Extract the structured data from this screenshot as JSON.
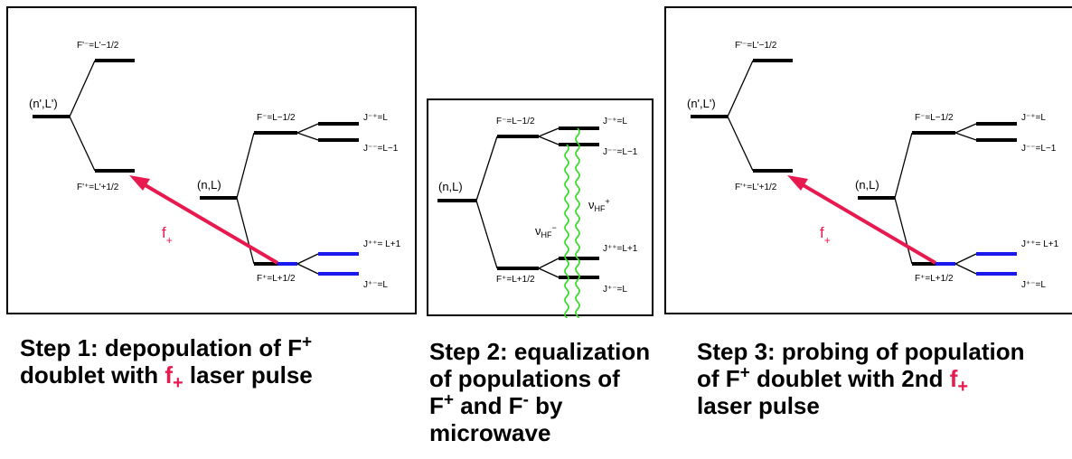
{
  "panel1": {
    "upper_state": "(n',L')",
    "upper_top_level": "F'⁻=L'−1/2",
    "upper_bottom_level": "F'⁺=L'+1/2",
    "lower_state": "(n,L)",
    "f_minus_level": "F⁻=L−1/2",
    "f_plus_level": "F⁺=L+1/2",
    "j_minus_plus": "J⁻⁺=L",
    "j_minus_minus": "J⁻⁻=L−1",
    "j_plus_plus": "J⁺⁺= L+1",
    "j_plus_minus": "J⁺⁻=L",
    "laser_label": "f",
    "laser_sub": "+"
  },
  "panel2": {
    "state": "(n,L)",
    "f_minus_level": "F⁻=L−1/2",
    "f_plus_level": "F⁺=L+1/2",
    "j_minus_plus": "J⁻⁺=L",
    "j_minus_minus": "J⁻⁻=L−1",
    "j_plus_plus": "J⁺⁺=L+1",
    "j_plus_minus": "J⁺⁻=L",
    "nu_minus": "ν",
    "nu_minus_sub": "HF",
    "nu_minus_sup": "−",
    "nu_plus": "ν",
    "nu_plus_sub": "HF",
    "nu_plus_sup": "+"
  },
  "panel3": {
    "upper_state": "(n',L')",
    "upper_top_level": "F'⁻=L'−1/2",
    "upper_bottom_level": "F'⁺=L'+1/2",
    "lower_state": "(n,L)",
    "f_minus_level": "F⁻=L−1/2",
    "f_plus_level": "F⁺=L+1/2",
    "j_minus_plus": "J⁻⁺=L",
    "j_minus_minus": "J⁻⁻=L−1",
    "j_plus_plus": "J⁺⁺= L+1",
    "j_plus_minus": "J⁺⁻=L",
    "laser_label": "f",
    "laser_sub": "+"
  },
  "captions": {
    "step1": {
      "a": "Step 1: depopulation of F",
      "a_sup": "+",
      "b": "doublet with ",
      "f": "f",
      "f_sub": "+",
      "c": " laser pulse"
    },
    "step2": {
      "a": "Step 2: equalization",
      "b": "of populations of",
      "c1": "F",
      "c1_sup": "+",
      "c2": " and F",
      "c2_sup": "-",
      "c3": " by",
      "d": "microwave"
    },
    "step3": {
      "a": "Step 3: probing of population",
      "b1": "of F",
      "b1_sup": "+",
      "b2": " doublet with 2nd ",
      "f": "f",
      "f_sub": "+",
      "c": "laser pulse"
    }
  },
  "colors": {
    "laser": "#e8194f",
    "doublet_blue": "#1a1aee",
    "microwave": "#33dd22",
    "level": "#000000"
  }
}
